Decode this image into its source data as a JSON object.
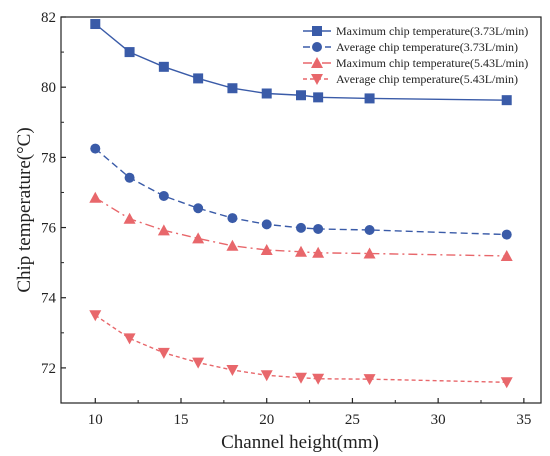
{
  "chart_data": {
    "type": "line",
    "title": "",
    "xlabel": "Channel height(mm)",
    "ylabel": "Chip temperature(°C)",
    "xlim": [
      8,
      36
    ],
    "ylim": [
      71,
      82
    ],
    "xticks": [
      10,
      15,
      20,
      25,
      30,
      35
    ],
    "yticks": [
      72,
      74,
      76,
      78,
      80,
      82
    ],
    "grid": false,
    "legend_position": "top-right",
    "x": [
      10,
      12,
      14,
      16,
      18,
      20,
      22,
      23,
      26,
      34
    ],
    "series": [
      {
        "name": "Maximum chip temperature(3.73L/min)",
        "color": "#3a5ba8",
        "marker": "square",
        "line_style": "solid",
        "values": [
          81.8,
          81.0,
          80.58,
          80.25,
          79.97,
          79.82,
          79.77,
          79.71,
          79.68,
          79.63
        ]
      },
      {
        "name": "Average chip temperature(3.73L/min)",
        "color": "#3a5ba8",
        "marker": "circle",
        "line_style": "dash",
        "values": [
          78.25,
          77.42,
          76.9,
          76.55,
          76.27,
          76.09,
          75.99,
          75.96,
          75.93,
          75.8
        ]
      },
      {
        "name": "Maximum chip temperature(5.43L/min)",
        "color": "#e8676b",
        "marker": "triangle-up",
        "line_style": "dash-dot",
        "values": [
          76.85,
          76.25,
          75.92,
          75.69,
          75.48,
          75.36,
          75.31,
          75.28,
          75.26,
          75.19
        ]
      },
      {
        "name": "Average chip temperature(5.43L/min)",
        "color": "#e8676b",
        "marker": "triangle-down",
        "line_style": "short-dash",
        "values": [
          73.5,
          72.84,
          72.43,
          72.15,
          71.94,
          71.79,
          71.72,
          71.69,
          71.68,
          71.59
        ]
      }
    ]
  }
}
